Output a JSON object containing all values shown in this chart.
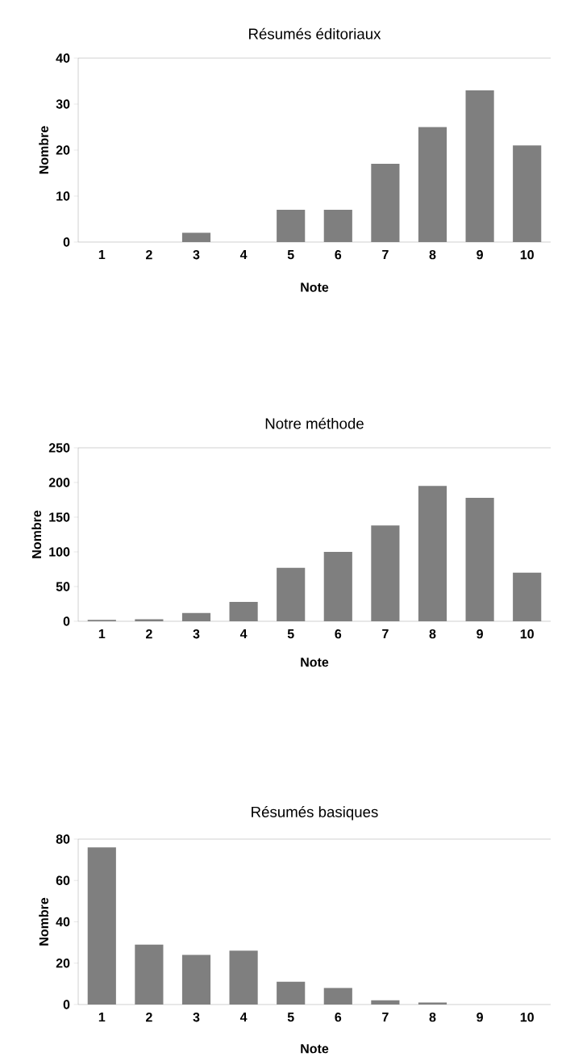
{
  "chart_data": [
    {
      "type": "bar",
      "title": "Résumés éditoriaux",
      "xlabel": "Note",
      "ylabel": "Nombre",
      "categories": [
        "1",
        "2",
        "3",
        "4",
        "5",
        "6",
        "7",
        "8",
        "9",
        "10"
      ],
      "values": [
        0,
        0,
        2,
        0,
        7,
        7,
        17,
        25,
        33,
        21
      ],
      "color": "#7f7f7f",
      "ylim": [
        0,
        40
      ],
      "yticks": [
        0,
        10,
        20,
        30,
        40
      ],
      "grid": false
    },
    {
      "type": "bar",
      "title": "Notre méthode",
      "xlabel": "Note",
      "ylabel": "Nombre",
      "categories": [
        "1",
        "2",
        "3",
        "4",
        "5",
        "6",
        "7",
        "8",
        "9",
        "10"
      ],
      "values": [
        2,
        3,
        12,
        28,
        77,
        100,
        138,
        195,
        178,
        70
      ],
      "color": "#7f7f7f",
      "ylim": [
        0,
        250
      ],
      "yticks": [
        0,
        50,
        100,
        150,
        200,
        250
      ],
      "grid": false
    },
    {
      "type": "bar",
      "title": "Résumés basiques",
      "xlabel": "Note",
      "ylabel": "Nombre",
      "categories": [
        "1",
        "2",
        "3",
        "4",
        "5",
        "6",
        "7",
        "8",
        "9",
        "10"
      ],
      "values": [
        76,
        29,
        24,
        26,
        11,
        8,
        2,
        1,
        0,
        0
      ],
      "color": "#7f7f7f",
      "ylim": [
        0,
        80
      ],
      "yticks": [
        0,
        20,
        40,
        60,
        80
      ],
      "grid": false
    }
  ]
}
